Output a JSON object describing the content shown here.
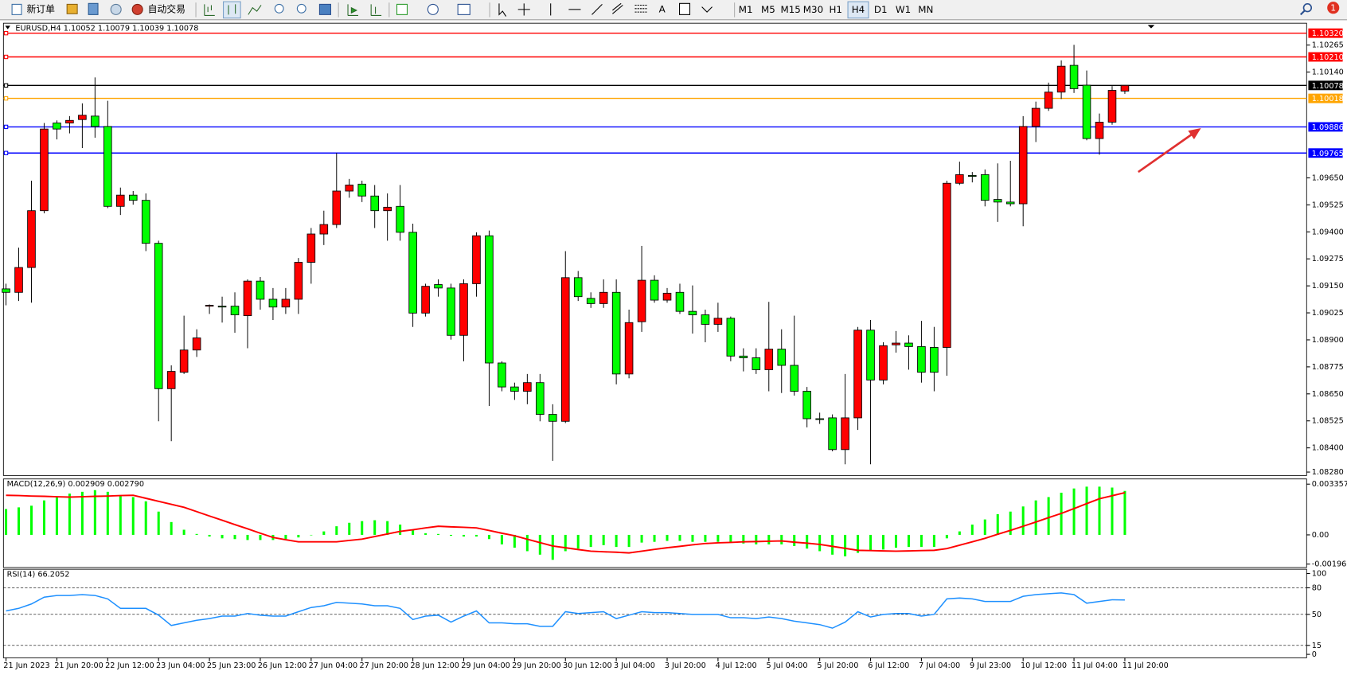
{
  "toolbar": {
    "new_order": "新订单",
    "auto_trading": "自动交易",
    "timeframes": [
      "M1",
      "M5",
      "M15",
      "M30",
      "H1",
      "H4",
      "D1",
      "W1",
      "MN"
    ],
    "active_timeframe_index": 5,
    "notifications": 1
  },
  "chart_data": [
    {
      "type": "candlestick",
      "title": "EURUSD,H4  1.10052 1.10079 1.10039 1.10078",
      "up_color": "#ff0000",
      "down_color": "#00ff00",
      "categories": [
        "21 Jun 2023",
        null,
        null,
        null,
        "21 Jun 20:00",
        null,
        null,
        null,
        "22 Jun 12:00",
        null,
        null,
        null,
        "23 Jun 04:00",
        null,
        null,
        null,
        "25 Jun 23:00",
        null,
        null,
        null,
        "26 Jun 12:00",
        null,
        null,
        null,
        "27 Jun 04:00",
        null,
        null,
        null,
        "27 Jun 20:00",
        null,
        null,
        null,
        "28 Jun 12:00",
        null,
        null,
        null,
        "29 Jun 04:00",
        null,
        null,
        null,
        "29 Jun 20:00",
        null,
        null,
        null,
        "30 Jun 12:00",
        null,
        null,
        null,
        "3 Jul 04:00",
        null,
        null,
        null,
        "3 Jul 20:00",
        null,
        null,
        null,
        "4 Jul 12:00",
        null,
        null,
        null,
        "5 Jul 04:00",
        null,
        null,
        null,
        "5 Jul 20:00",
        null,
        null,
        null,
        "6 Jul 12:00",
        null,
        null,
        null,
        "7 Jul 04:00",
        null,
        null,
        null,
        "9 Jul 23:00",
        null,
        null,
        null,
        "10 Jul 12:00",
        null,
        null,
        null,
        "11 Jul 04:00",
        null,
        null,
        null,
        "11 Jul 20:00"
      ],
      "open": [
        1.09136,
        1.0912,
        1.09235,
        1.09498,
        1.09904,
        1.09904,
        1.0992,
        1.09936,
        1.09888,
        1.09518,
        1.0957,
        1.09546,
        1.09347,
        1.08674,
        1.0875,
        1.08853,
        1.09056,
        1.09056,
        1.09056,
        1.09012,
        1.09172,
        1.09088,
        1.09052,
        1.09088,
        1.09259,
        1.0939,
        1.09434,
        1.09589,
        1.09621,
        1.09566,
        1.09498,
        1.09518,
        1.09398,
        1.09024,
        1.09156,
        1.0914,
        1.08921,
        1.0916,
        1.09382,
        1.08793,
        1.08682,
        1.08662,
        1.08702,
        1.08555,
        1.08523,
        1.09188,
        1.09092,
        1.09068,
        1.0912,
        1.08742,
        1.08984,
        1.09176,
        1.09084,
        1.0912,
        1.09032,
        1.09016,
        1.08972,
        1.09,
        1.08825,
        1.08817,
        1.08762,
        1.08857,
        1.08782,
        1.08662,
        1.08535,
        1.08539,
        1.08392,
        1.08539,
        1.08945,
        1.08714,
        1.08877,
        1.08885,
        1.08869,
        1.08865,
        1.08865,
        1.09625,
        1.09661,
        1.09665,
        1.0955,
        1.09538,
        1.0953,
        1.09888,
        1.09972,
        1.10047,
        1.10171,
        1.10079,
        1.09832,
        1.09908,
        1.10052
      ],
      "high": [
        1.0916,
        1.09327,
        1.09637,
        1.09904,
        1.09916,
        1.09936,
        1.09995,
        1.10115,
        1.10007,
        1.09605,
        1.09589,
        1.09578,
        1.09359,
        1.08782,
        1.09012,
        1.08949,
        1.09064,
        1.091,
        1.0912,
        1.0918,
        1.09191,
        1.0914,
        1.0914,
        1.09279,
        1.09418,
        1.09498,
        1.09765,
        1.09645,
        1.09637,
        1.09617,
        1.09578,
        1.09617,
        1.09438,
        1.0916,
        1.0918,
        1.0916,
        1.0918,
        1.09398,
        1.09406,
        1.08801,
        1.08702,
        1.08742,
        1.08742,
        1.08602,
        1.09311,
        1.09219,
        1.0912,
        1.0918,
        1.0918,
        1.0904,
        1.09335,
        1.09199,
        1.0914,
        1.0916,
        1.09152,
        1.0904,
        1.09072,
        1.09008,
        1.08861,
        1.08861,
        1.09076,
        1.08949,
        1.09012,
        1.08682,
        1.08563,
        1.08555,
        1.08742,
        1.0896,
        1.08992,
        1.08889,
        1.08941,
        1.08921,
        1.08988,
        1.0896,
        1.09637,
        1.09725,
        1.09677,
        1.09689,
        1.09717,
        1.09729,
        1.09936,
        1.10003,
        1.10091,
        1.10194,
        1.10266,
        1.10147,
        1.09948,
        1.10075,
        1.10079
      ],
      "low": [
        1.0906,
        1.0908,
        1.09072,
        1.09486,
        1.09828,
        1.09856,
        1.09788,
        1.09836,
        1.0951,
        1.09478,
        1.09526,
        1.09311,
        1.08523,
        1.08431,
        1.08742,
        1.08821,
        1.0902,
        1.0898,
        1.08933,
        1.08861,
        1.0904,
        1.08992,
        1.0902,
        1.0902,
        1.0916,
        1.09339,
        1.09418,
        1.09558,
        1.09538,
        1.09418,
        1.09359,
        1.09359,
        1.0896,
        1.09008,
        1.091,
        1.08901,
        1.08801,
        1.091,
        1.08594,
        1.08662,
        1.08622,
        1.08602,
        1.08523,
        1.0834,
        1.08515,
        1.0908,
        1.09048,
        1.09048,
        1.08694,
        1.08722,
        1.08937,
        1.09072,
        1.09072,
        1.0902,
        1.08929,
        1.08889,
        1.08937,
        1.08801,
        1.08754,
        1.08742,
        1.08662,
        1.08654,
        1.08642,
        1.08495,
        1.08511,
        1.08384,
        1.08324,
        1.08483,
        1.08324,
        1.08694,
        1.08841,
        1.08762,
        1.08702,
        1.08662,
        1.08734,
        1.09617,
        1.09629,
        1.09518,
        1.09446,
        1.09518,
        1.09426,
        1.09816,
        1.0996,
        1.10015,
        1.10043,
        1.09824,
        1.09757,
        1.09896,
        1.10039
      ],
      "close": [
        1.0912,
        1.09235,
        1.09498,
        1.09876,
        1.09876,
        1.09916,
        1.0994,
        1.09888,
        1.09518,
        1.0957,
        1.09546,
        1.09347,
        1.08674,
        1.08754,
        1.08853,
        1.08909,
        1.0906,
        1.09052,
        1.09016,
        1.09172,
        1.09088,
        1.09052,
        1.09088,
        1.09259,
        1.0939,
        1.09434,
        1.09589,
        1.09617,
        1.09566,
        1.09498,
        1.09514,
        1.09398,
        1.09024,
        1.09148,
        1.0914,
        1.08921,
        1.0916,
        1.09382,
        1.08793,
        1.08682,
        1.08662,
        1.08702,
        1.08555,
        1.08523,
        1.09188,
        1.091,
        1.09068,
        1.0912,
        1.08742,
        1.0898,
        1.09176,
        1.09084,
        1.09116,
        1.09032,
        1.09016,
        1.08972,
        1.09,
        1.08825,
        1.08817,
        1.08762,
        1.08857,
        1.08782,
        1.08662,
        1.08535,
        1.08531,
        1.08392,
        1.08539,
        1.08945,
        1.08714,
        1.08873,
        1.08885,
        1.08869,
        1.0875,
        1.0875,
        1.09625,
        1.09665,
        1.09657,
        1.09546,
        1.09538,
        1.0953,
        1.09888,
        1.09972,
        1.10047,
        1.10167,
        1.10063,
        1.09832,
        1.09908,
        1.10055,
        1.10078
      ],
      "ylim": [
        1.08272,
        1.10366
      ],
      "yticks": [
        1.10265,
        {
          "value": 1.1014,
          "label": "1.10140"
        },
        {
          "value": 1.0965,
          "label": "1.09650"
        },
        1.09525,
        {
          "value": 1.094,
          "label": "1.09400"
        },
        1.09275,
        {
          "value": 1.0915,
          "label": "1.09150"
        },
        1.09025,
        {
          "value": 1.089,
          "label": "1.08900"
        },
        1.08775,
        {
          "value": 1.0865,
          "label": "1.08650"
        },
        1.08525,
        {
          "value": 1.084,
          "label": "1.08400"
        },
        {
          "value": 1.0828,
          "label": "1.08280"
        }
      ],
      "levels": [
        {
          "value": 1.1032,
          "label": "1.10320",
          "color": "#ff0000"
        },
        {
          "value": 1.1021,
          "label": "1.10210",
          "color": "#ff0000"
        },
        {
          "value": 1.10078,
          "label": "1.10078",
          "color": "#000000"
        },
        {
          "value": 1.10018,
          "label": "1.10018",
          "color": "#ffa500"
        },
        {
          "value": 1.09886,
          "label": "1.09886",
          "color": "#0000ff"
        },
        {
          "value": 1.09765,
          "label": "1.09765",
          "color": "#0000ff"
        }
      ]
    },
    {
      "type": "macd",
      "title": "MACD(12,26,9) 0.002909 0.002790",
      "color": "#00ff00",
      "signal_color": "#ff0000",
      "histogram": [
        0.00171,
        0.00182,
        0.00193,
        0.00228,
        0.0025,
        0.00273,
        0.00285,
        0.00296,
        0.00285,
        0.00262,
        0.0025,
        0.00222,
        0.00154,
        0.00085,
        0.00034,
        6e-05,
        -0.00011,
        -0.00023,
        -0.00028,
        -0.00034,
        -0.00034,
        -0.00034,
        -0.00028,
        -0.00017,
        0,
        0.00023,
        0.00057,
        0.0008,
        0.00091,
        0.00097,
        0.00091,
        0.00068,
        0.00034,
        0.00011,
        6e-05,
        -6e-05,
        -0.00011,
        -0.00011,
        -0.00028,
        -0.00063,
        -0.00085,
        -0.00108,
        -0.00131,
        -0.00165,
        -0.00108,
        -0.00091,
        -0.0008,
        -0.00068,
        -0.0008,
        -0.0008,
        -0.00051,
        -0.00046,
        -0.0004,
        -0.0004,
        -0.00046,
        -0.00046,
        -0.00046,
        -0.00051,
        -0.00057,
        -0.00063,
        -0.00063,
        -0.00063,
        -0.00074,
        -0.00091,
        -0.00108,
        -0.00131,
        -0.00142,
        -0.00119,
        -0.00108,
        -0.00097,
        -0.00085,
        -0.0008,
        -0.0008,
        -0.0008,
        -0.00023,
        0.00023,
        0.00068,
        0.00102,
        0.00137,
        0.00154,
        0.00188,
        0.00228,
        0.0025,
        0.00279,
        0.00307,
        0.00319,
        0.00319,
        0.00313,
        0.002909
      ],
      "signal": [
        0.00262,
        0.0026,
        0.00257,
        0.00255,
        0.00252,
        0.0025,
        0.00252,
        0.00255,
        0.00257,
        0.0026,
        0.00262,
        0.00242,
        0.00222,
        0.00202,
        0.00182,
        0.00154,
        0.00125,
        0.00097,
        0.00068,
        0.0004,
        0.00011,
        -0.00017,
        -0.00032,
        -0.00046,
        -0.00046,
        -0.00046,
        -0.00046,
        -0.00037,
        -0.00028,
        -0.00011,
        6e-05,
        0.00023,
        0.00034,
        0.00046,
        0.00057,
        0.00053,
        0.0005,
        0.00046,
        0.00029,
        0.00011,
        -6e-05,
        -0.00029,
        -0.00051,
        -0.00074,
        -0.00085,
        -0.00097,
        -0.00108,
        -0.00112,
        -0.00115,
        -0.00119,
        -0.00108,
        -0.00096,
        -0.00085,
        -0.00076,
        -0.00066,
        -0.00057,
        -0.00053,
        -0.0005,
        -0.00046,
        -0.00044,
        -0.00042,
        -0.0004,
        -0.00048,
        -0.00055,
        -0.00063,
        -0.00076,
        -0.00089,
        -0.00102,
        -0.00104,
        -0.00106,
        -0.00108,
        -0.00106,
        -0.00104,
        -0.00102,
        -0.00091,
        -0.00068,
        -0.00046,
        -0.00023,
        4e-05,
        0.0003,
        0.00057,
        0.00085,
        0.00114,
        0.00142,
        0.00174,
        0.00207,
        0.00239,
        0.00259,
        0.00279
      ],
      "ylim": [
        -0.00216,
        0.0037
      ],
      "yticks": [
        0.003357,
        {
          "value": 0,
          "label": "0.00"
        },
        -0.001962
      ]
    },
    {
      "type": "line",
      "title": "RSI(14) 66.2052",
      "color": "#1e90ff",
      "grid": "dashed",
      "values": [
        53.9,
        56.8,
        61.7,
        69.4,
        71.4,
        71.4,
        72.3,
        71.4,
        67.5,
        56.8,
        56.8,
        56.8,
        49.1,
        37.5,
        40.4,
        43.3,
        45.2,
        48.1,
        48.1,
        51.0,
        49.1,
        48.1,
        48.1,
        53.0,
        57.8,
        59.7,
        63.6,
        62.6,
        61.7,
        59.7,
        59.7,
        56.8,
        44.2,
        48.1,
        49.1,
        41.3,
        48.1,
        53.9,
        40.4,
        40.4,
        39.4,
        39.4,
        36.5,
        36.5,
        53.0,
        51.0,
        52.0,
        53.0,
        45.2,
        49.1,
        53.0,
        52.0,
        52.0,
        51.0,
        50.0,
        50.0,
        50.0,
        46.2,
        46.2,
        45.2,
        47.1,
        45.2,
        42.3,
        40.4,
        38.4,
        34.5,
        41.3,
        53.0,
        47.1,
        50.0,
        51.0,
        51.0,
        48.1,
        50.0,
        67.5,
        68.4,
        67.5,
        64.6,
        64.6,
        64.6,
        70.4,
        72.3,
        73.3,
        74.3,
        72.3,
        62.6,
        64.6,
        66.5,
        66.2052
      ],
      "ylim": [
        0,
        100
      ],
      "yticks": [
        100,
        80,
        50,
        15,
        0
      ]
    }
  ]
}
